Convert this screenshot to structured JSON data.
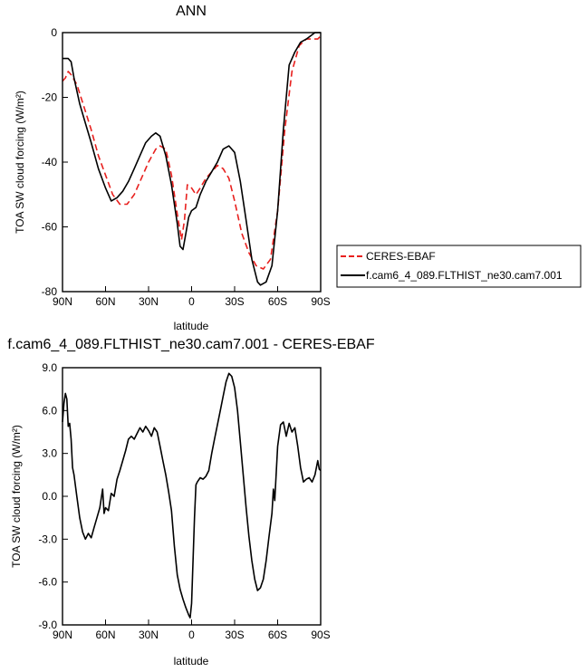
{
  "chart_data": [
    {
      "type": "line",
      "title": "ANN",
      "xlabel": "latitude",
      "ylabel": "TOA SW cloud forcing (W/m²)",
      "xlim": [
        90,
        -90
      ],
      "ylim": [
        -80,
        0
      ],
      "xticks": [
        90,
        60,
        30,
        0,
        -30,
        -60,
        -90
      ],
      "xtick_labels": [
        "90N",
        "60N",
        "30N",
        "0",
        "30S",
        "60S",
        "90S"
      ],
      "yticks": [
        0,
        -20,
        -40,
        -60,
        -80
      ],
      "ytick_labels": [
        "0",
        "-20",
        "-40",
        "-60",
        "-80"
      ],
      "grid": false,
      "legend_position": "right",
      "series": [
        {
          "name": "CERES-EBAF",
          "color": "#e8201e",
          "dash": true,
          "points": [
            [
              90,
              -15
            ],
            [
              88,
              -14
            ],
            [
              86,
              -12
            ],
            [
              84,
              -13
            ],
            [
              80,
              -16
            ],
            [
              75,
              -23
            ],
            [
              70,
              -30
            ],
            [
              65,
              -38
            ],
            [
              60,
              -44
            ],
            [
              55,
              -50
            ],
            [
              50,
              -53
            ],
            [
              45,
              -53
            ],
            [
              40,
              -50
            ],
            [
              35,
              -45
            ],
            [
              30,
              -40
            ],
            [
              25,
              -36
            ],
            [
              22,
              -35
            ],
            [
              18,
              -36
            ],
            [
              14,
              -44
            ],
            [
              10,
              -56
            ],
            [
              7,
              -64
            ],
            [
              5,
              -58
            ],
            [
              3,
              -47
            ],
            [
              0,
              -48
            ],
            [
              -3,
              -50
            ],
            [
              -6,
              -48
            ],
            [
              -10,
              -45
            ],
            [
              -14,
              -43
            ],
            [
              -18,
              -41
            ],
            [
              -22,
              -42
            ],
            [
              -26,
              -45
            ],
            [
              -30,
              -52
            ],
            [
              -35,
              -62
            ],
            [
              -40,
              -68
            ],
            [
              -45,
              -72
            ],
            [
              -50,
              -73
            ],
            [
              -55,
              -70
            ],
            [
              -60,
              -55
            ],
            [
              -65,
              -30
            ],
            [
              -70,
              -12
            ],
            [
              -75,
              -4
            ],
            [
              -80,
              -2
            ],
            [
              -85,
              -2
            ],
            [
              -88,
              -2
            ],
            [
              -90,
              -1
            ]
          ]
        },
        {
          "name": "f.cam6_4_089.FLTHIST_ne30.cam7.001",
          "color": "#000000",
          "dash": false,
          "points": [
            [
              90,
              -8
            ],
            [
              86,
              -8
            ],
            [
              84,
              -9
            ],
            [
              82,
              -14
            ],
            [
              78,
              -22
            ],
            [
              74,
              -28
            ],
            [
              70,
              -34
            ],
            [
              65,
              -42
            ],
            [
              60,
              -48
            ],
            [
              56,
              -52
            ],
            [
              52,
              -51
            ],
            [
              48,
              -49
            ],
            [
              44,
              -46
            ],
            [
              40,
              -42
            ],
            [
              36,
              -38
            ],
            [
              32,
              -34
            ],
            [
              28,
              -32
            ],
            [
              25,
              -31
            ],
            [
              22,
              -32
            ],
            [
              18,
              -38
            ],
            [
              14,
              -47
            ],
            [
              10,
              -59
            ],
            [
              8,
              -66
            ],
            [
              6,
              -67
            ],
            [
              4,
              -62
            ],
            [
              2,
              -57
            ],
            [
              0,
              -55
            ],
            [
              -3,
              -54
            ],
            [
              -6,
              -50
            ],
            [
              -10,
              -46
            ],
            [
              -14,
              -43
            ],
            [
              -18,
              -40
            ],
            [
              -22,
              -36
            ],
            [
              -26,
              -35
            ],
            [
              -30,
              -37
            ],
            [
              -34,
              -46
            ],
            [
              -38,
              -58
            ],
            [
              -42,
              -70
            ],
            [
              -46,
              -77
            ],
            [
              -48,
              -78
            ],
            [
              -52,
              -77
            ],
            [
              -56,
              -72
            ],
            [
              -60,
              -55
            ],
            [
              -64,
              -30
            ],
            [
              -68,
              -10
            ],
            [
              -72,
              -6
            ],
            [
              -76,
              -3
            ],
            [
              -80,
              -2
            ],
            [
              -86,
              0
            ],
            [
              -90,
              0
            ]
          ]
        }
      ]
    },
    {
      "type": "line",
      "title": "f.cam6_4_089.FLTHIST_ne30.cam7.001 - CERES-EBAF",
      "xlabel": "latitude",
      "ylabel": "TOA SW cloud forcing (W/m²)",
      "xlim": [
        90,
        -90
      ],
      "ylim": [
        -9,
        9
      ],
      "xticks": [
        90,
        60,
        30,
        0,
        -30,
        -60,
        -90
      ],
      "xtick_labels": [
        "90N",
        "60N",
        "30N",
        "0",
        "30S",
        "60S",
        "90S"
      ],
      "yticks": [
        9,
        6,
        3,
        0,
        -3,
        -6,
        -9
      ],
      "ytick_labels": [
        "9.0",
        "6.0",
        "3.0",
        "0.0",
        "-3.0",
        "-6.0",
        "-9.0"
      ],
      "grid": false,
      "series": [
        {
          "color": "#000000",
          "dash": false,
          "points": [
            [
              90,
              5.2
            ],
            [
              89,
              6.5
            ],
            [
              88,
              7.2
            ],
            [
              87,
              6.8
            ],
            [
              86,
              4.9
            ],
            [
              85,
              5.1
            ],
            [
              84,
              4.0
            ],
            [
              83,
              2.0
            ],
            [
              82,
              1.5
            ],
            [
              80,
              0.0
            ],
            [
              78,
              -1.5
            ],
            [
              76,
              -2.5
            ],
            [
              74,
              -3.0
            ],
            [
              72,
              -2.6
            ],
            [
              70,
              -2.9
            ],
            [
              68,
              -2.2
            ],
            [
              66,
              -1.5
            ],
            [
              64,
              -0.8
            ],
            [
              62,
              0.5
            ],
            [
              61,
              -1.2
            ],
            [
              60,
              -0.8
            ],
            [
              58,
              -1.0
            ],
            [
              56,
              0.2
            ],
            [
              54,
              0.0
            ],
            [
              52,
              1.2
            ],
            [
              50,
              1.8
            ],
            [
              48,
              2.5
            ],
            [
              46,
              3.2
            ],
            [
              44,
              4.0
            ],
            [
              42,
              4.2
            ],
            [
              40,
              4.0
            ],
            [
              38,
              4.4
            ],
            [
              36,
              4.8
            ],
            [
              34,
              4.5
            ],
            [
              32,
              4.9
            ],
            [
              30,
              4.6
            ],
            [
              28,
              4.2
            ],
            [
              26,
              4.8
            ],
            [
              24,
              4.5
            ],
            [
              22,
              3.5
            ],
            [
              20,
              2.5
            ],
            [
              18,
              1.5
            ],
            [
              16,
              0.3
            ],
            [
              14,
              -1.0
            ],
            [
              12,
              -3.5
            ],
            [
              10,
              -5.5
            ],
            [
              8,
              -6.5
            ],
            [
              6,
              -7.2
            ],
            [
              4,
              -7.8
            ],
            [
              2,
              -8.3
            ],
            [
              1,
              -8.5
            ],
            [
              0,
              -7.5
            ],
            [
              -1,
              -4.5
            ],
            [
              -2,
              -1.5
            ],
            [
              -3,
              0.8
            ],
            [
              -4,
              1.0
            ],
            [
              -6,
              1.3
            ],
            [
              -8,
              1.2
            ],
            [
              -10,
              1.4
            ],
            [
              -12,
              1.8
            ],
            [
              -14,
              3.0
            ],
            [
              -16,
              4.0
            ],
            [
              -18,
              5.0
            ],
            [
              -20,
              6.0
            ],
            [
              -22,
              7.0
            ],
            [
              -24,
              8.0
            ],
            [
              -26,
              8.6
            ],
            [
              -28,
              8.4
            ],
            [
              -30,
              7.6
            ],
            [
              -32,
              6.0
            ],
            [
              -34,
              3.8
            ],
            [
              -36,
              1.5
            ],
            [
              -38,
              -0.8
            ],
            [
              -40,
              -2.8
            ],
            [
              -42,
              -4.5
            ],
            [
              -44,
              -5.8
            ],
            [
              -46,
              -6.6
            ],
            [
              -48,
              -6.4
            ],
            [
              -50,
              -5.8
            ],
            [
              -52,
              -4.5
            ],
            [
              -54,
              -2.8
            ],
            [
              -56,
              -1.2
            ],
            [
              -57,
              0.5
            ],
            [
              -58,
              -0.3
            ],
            [
              -60,
              3.5
            ],
            [
              -62,
              5.0
            ],
            [
              -64,
              5.2
            ],
            [
              -66,
              4.2
            ],
            [
              -68,
              5.1
            ],
            [
              -70,
              4.5
            ],
            [
              -72,
              4.8
            ],
            [
              -74,
              3.5
            ],
            [
              -76,
              2.0
            ],
            [
              -78,
              1.0
            ],
            [
              -80,
              1.2
            ],
            [
              -82,
              1.3
            ],
            [
              -84,
              1.0
            ],
            [
              -86,
              1.5
            ],
            [
              -88,
              2.5
            ],
            [
              -89,
              1.9
            ],
            [
              -90,
              1.8
            ]
          ]
        }
      ]
    }
  ]
}
